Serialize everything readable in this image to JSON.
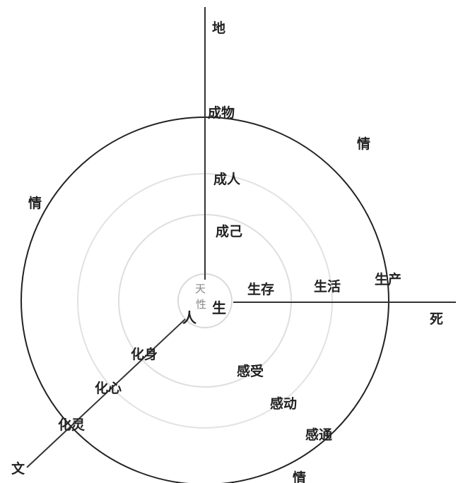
{
  "labels": {
    "di": "地",
    "chengwu": "成物",
    "qing_top_right": "情",
    "chengren": "成人",
    "qing_left": "情",
    "chengji": "成己",
    "tian": "天",
    "xing": "性",
    "sheng_core": "生",
    "ren": "人",
    "shengcun": "生存",
    "shenghuo": "生活",
    "shengchan": "生产",
    "si": "死",
    "huashen": "化身",
    "ganshou": "感受",
    "huaxin": "化心",
    "gandong": "感动",
    "hualing": "化灵",
    "gantong": "感通",
    "wen": "文",
    "qing_bottom": "情"
  },
  "colors": {
    "outer_circle": "#222222",
    "inner_rings": "#d9d9d9",
    "axes": "#333333",
    "text": "#222222"
  }
}
